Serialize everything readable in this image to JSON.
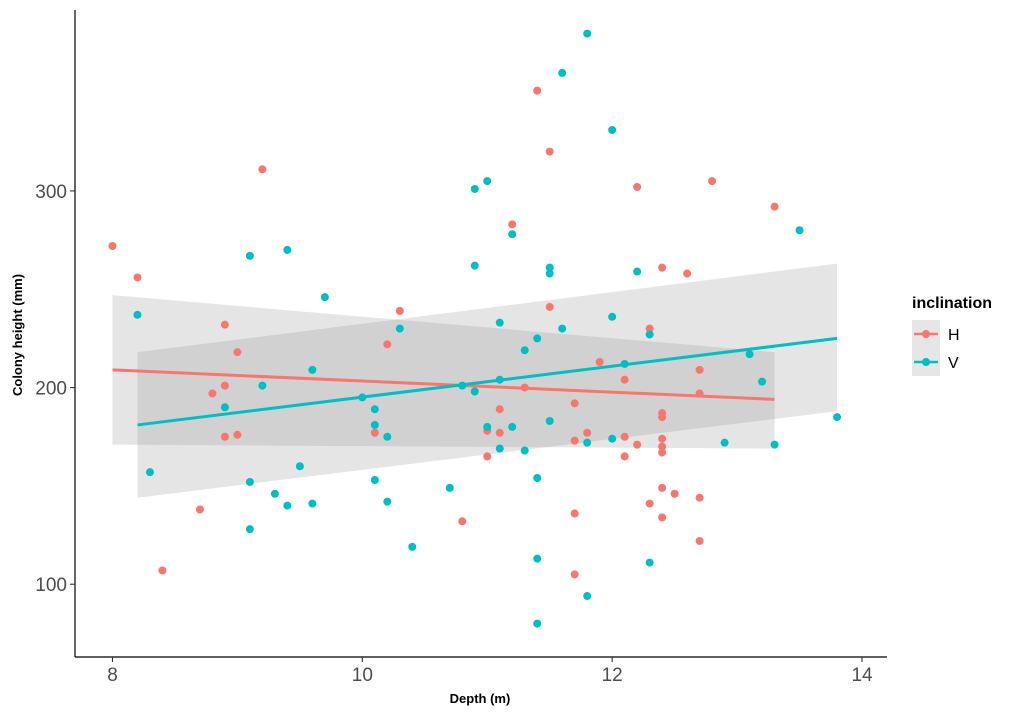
{
  "chart_data": {
    "type": "scatter",
    "title": "",
    "xlabel": "Depth (m)",
    "ylabel": "Colony height (mm)",
    "xlim": [
      7.7,
      14.2
    ],
    "ylim": [
      63,
      392
    ],
    "xticks": [
      8,
      10,
      12,
      14
    ],
    "yticks": [
      100,
      200,
      300
    ],
    "grid": false,
    "legend": {
      "title": "inclination",
      "placement": "right"
    },
    "series": [
      {
        "name": "H",
        "color": "#F8766D",
        "points": [
          [
            8.0,
            272
          ],
          [
            8.2,
            256
          ],
          [
            8.4,
            107
          ],
          [
            8.7,
            138
          ],
          [
            8.8,
            197
          ],
          [
            8.9,
            232
          ],
          [
            8.9,
            201
          ],
          [
            8.9,
            175
          ],
          [
            9.0,
            218
          ],
          [
            9.0,
            176
          ],
          [
            9.2,
            311
          ],
          [
            10.2,
            222
          ],
          [
            10.3,
            239
          ],
          [
            10.1,
            177
          ],
          [
            10.8,
            132
          ],
          [
            11.0,
            165
          ],
          [
            11.0,
            178
          ],
          [
            11.1,
            177
          ],
          [
            11.1,
            189
          ],
          [
            11.2,
            283
          ],
          [
            11.3,
            200
          ],
          [
            11.4,
            351
          ],
          [
            11.5,
            320
          ],
          [
            11.5,
            241
          ],
          [
            11.7,
            192
          ],
          [
            11.7,
            173
          ],
          [
            11.7,
            136
          ],
          [
            11.7,
            105
          ],
          [
            11.8,
            177
          ],
          [
            11.9,
            213
          ],
          [
            12.1,
            204
          ],
          [
            12.1,
            175
          ],
          [
            12.1,
            165
          ],
          [
            12.2,
            171
          ],
          [
            12.2,
            302
          ],
          [
            12.3,
            230
          ],
          [
            12.3,
            141
          ],
          [
            12.4,
            261
          ],
          [
            12.4,
            187
          ],
          [
            12.4,
            185
          ],
          [
            12.4,
            174
          ],
          [
            12.4,
            170
          ],
          [
            12.4,
            167
          ],
          [
            12.4,
            149
          ],
          [
            12.4,
            134
          ],
          [
            12.5,
            146
          ],
          [
            12.6,
            258
          ],
          [
            12.7,
            209
          ],
          [
            12.7,
            197
          ],
          [
            12.7,
            144
          ],
          [
            12.7,
            122
          ],
          [
            12.8,
            305
          ],
          [
            13.3,
            292
          ]
        ],
        "fit": {
          "x": [
            8.0,
            13.3
          ],
          "y": [
            209,
            194
          ],
          "ci_lower": [
            171,
            169
          ],
          "ci_upper": [
            247,
            218
          ]
        }
      },
      {
        "name": "V",
        "color": "#00BFC4",
        "points": [
          [
            8.2,
            237
          ],
          [
            8.3,
            157
          ],
          [
            8.9,
            190
          ],
          [
            9.1,
            267
          ],
          [
            9.1,
            152
          ],
          [
            9.1,
            128
          ],
          [
            9.2,
            201
          ],
          [
            9.3,
            146
          ],
          [
            9.4,
            270
          ],
          [
            9.4,
            140
          ],
          [
            9.5,
            160
          ],
          [
            9.6,
            209
          ],
          [
            9.6,
            141
          ],
          [
            9.7,
            246
          ],
          [
            10.0,
            195
          ],
          [
            10.1,
            189
          ],
          [
            10.1,
            181
          ],
          [
            10.1,
            153
          ],
          [
            10.2,
            175
          ],
          [
            10.2,
            142
          ],
          [
            10.3,
            230
          ],
          [
            10.4,
            119
          ],
          [
            10.7,
            149
          ],
          [
            10.8,
            201
          ],
          [
            10.9,
            301
          ],
          [
            10.9,
            262
          ],
          [
            10.9,
            198
          ],
          [
            11.0,
            305
          ],
          [
            11.0,
            180
          ],
          [
            11.1,
            233
          ],
          [
            11.1,
            204
          ],
          [
            11.1,
            169
          ],
          [
            11.2,
            278
          ],
          [
            11.2,
            180
          ],
          [
            11.3,
            219
          ],
          [
            11.3,
            168
          ],
          [
            11.4,
            225
          ],
          [
            11.4,
            154
          ],
          [
            11.4,
            113
          ],
          [
            11.4,
            80
          ],
          [
            11.5,
            261
          ],
          [
            11.5,
            258
          ],
          [
            11.5,
            183
          ],
          [
            11.6,
            360
          ],
          [
            11.6,
            230
          ],
          [
            11.8,
            380
          ],
          [
            11.8,
            172
          ],
          [
            11.8,
            94
          ],
          [
            12.0,
            331
          ],
          [
            12.0,
            236
          ],
          [
            12.0,
            174
          ],
          [
            12.1,
            212
          ],
          [
            12.2,
            259
          ],
          [
            12.3,
            227
          ],
          [
            12.3,
            111
          ],
          [
            12.9,
            172
          ],
          [
            13.1,
            217
          ],
          [
            13.2,
            203
          ],
          [
            13.3,
            171
          ],
          [
            13.5,
            280
          ],
          [
            13.8,
            185
          ]
        ],
        "fit": {
          "x": [
            8.2,
            13.8
          ],
          "y": [
            181,
            225
          ],
          "ci_lower": [
            144,
            188
          ],
          "ci_upper": [
            218,
            263
          ]
        }
      }
    ]
  }
}
